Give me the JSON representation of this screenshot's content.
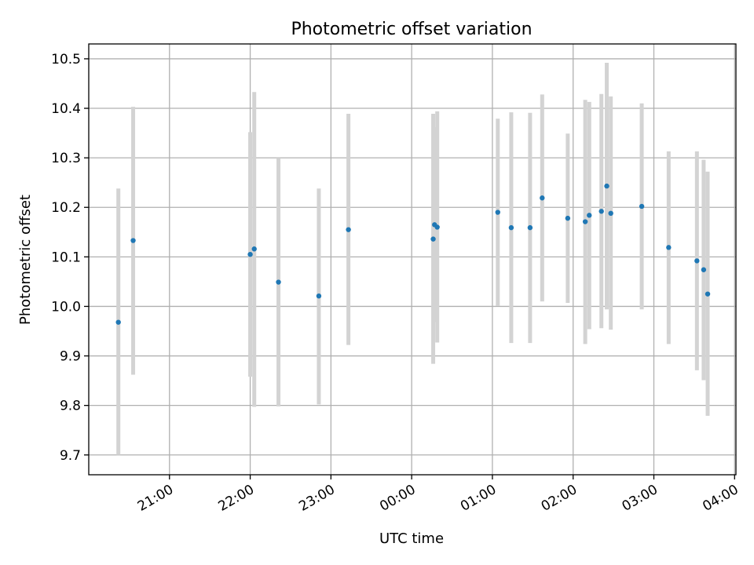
{
  "chart_data": {
    "type": "scatter",
    "title": "Photometric offset variation",
    "xlabel": "UTC time",
    "ylabel": "Photometric offset",
    "xlim": [
      "2000-01-01T20:00:00",
      "2000-01-02T04:01:00"
    ],
    "ylim": [
      9.66,
      10.53
    ],
    "x_ticks": [
      {
        "t": "2000-01-01T21:00:00",
        "label": "21:00"
      },
      {
        "t": "2000-01-01T22:00:00",
        "label": "22:00"
      },
      {
        "t": "2000-01-01T23:00:00",
        "label": "23:00"
      },
      {
        "t": "2000-01-02T00:00:00",
        "label": "00:00"
      },
      {
        "t": "2000-01-02T01:00:00",
        "label": "01:00"
      },
      {
        "t": "2000-01-02T02:00:00",
        "label": "02:00"
      },
      {
        "t": "2000-01-02T03:00:00",
        "label": "03:00"
      },
      {
        "t": "2000-01-02T04:00:00",
        "label": "04:00"
      }
    ],
    "y_ticks": [
      {
        "v": 9.7,
        "label": "9.7"
      },
      {
        "v": 9.8,
        "label": "9.8"
      },
      {
        "v": 9.9,
        "label": "9.9"
      },
      {
        "v": 10.0,
        "label": "10.0"
      },
      {
        "v": 10.1,
        "label": "10.1"
      },
      {
        "v": 10.2,
        "label": "10.2"
      },
      {
        "v": 10.3,
        "label": "10.3"
      },
      {
        "v": 10.4,
        "label": "10.4"
      },
      {
        "v": 10.5,
        "label": "10.5"
      }
    ],
    "grid": true,
    "colors": {
      "point": "#1f77b4",
      "errorbar": "#d3d3d3",
      "grid": "#b0b0b0"
    },
    "points": [
      {
        "t": "2000-01-01T20:22:00",
        "y": 9.968,
        "ylow": 9.7,
        "yhigh": 10.238
      },
      {
        "t": "2000-01-01T20:33:00",
        "y": 10.133,
        "ylow": 9.862,
        "yhigh": 10.403
      },
      {
        "t": "2000-01-01T22:00:00",
        "y": 10.105,
        "ylow": 9.858,
        "yhigh": 10.352
      },
      {
        "t": "2000-01-01T22:03:00",
        "y": 10.116,
        "ylow": 9.797,
        "yhigh": 10.433
      },
      {
        "t": "2000-01-01T22:21:00",
        "y": 10.049,
        "ylow": 9.798,
        "yhigh": 10.3
      },
      {
        "t": "2000-01-01T22:51:00",
        "y": 10.021,
        "ylow": 9.802,
        "yhigh": 10.238
      },
      {
        "t": "2000-01-01T23:13:00",
        "y": 10.155,
        "ylow": 9.922,
        "yhigh": 10.389
      },
      {
        "t": "2000-01-02T00:16:00",
        "y": 10.136,
        "ylow": 9.884,
        "yhigh": 10.389
      },
      {
        "t": "2000-01-02T00:17:00",
        "y": 10.165,
        "ylow": 9.968,
        "yhigh": 10.362
      },
      {
        "t": "2000-01-02T00:19:00",
        "y": 10.16,
        "ylow": 9.927,
        "yhigh": 10.394
      },
      {
        "t": "2000-01-02T01:04:00",
        "y": 10.19,
        "ylow": 10.001,
        "yhigh": 10.379
      },
      {
        "t": "2000-01-02T01:14:00",
        "y": 10.159,
        "ylow": 9.926,
        "yhigh": 10.392
      },
      {
        "t": "2000-01-02T01:28:00",
        "y": 10.159,
        "ylow": 9.926,
        "yhigh": 10.391
      },
      {
        "t": "2000-01-02T01:37:00",
        "y": 10.219,
        "ylow": 10.01,
        "yhigh": 10.428
      },
      {
        "t": "2000-01-02T01:56:00",
        "y": 10.178,
        "ylow": 10.007,
        "yhigh": 10.349
      },
      {
        "t": "2000-01-02T02:09:00",
        "y": 10.171,
        "ylow": 9.924,
        "yhigh": 10.417
      },
      {
        "t": "2000-01-02T02:12:00",
        "y": 10.184,
        "ylow": 9.954,
        "yhigh": 10.413
      },
      {
        "t": "2000-01-02T02:21:00",
        "y": 10.192,
        "ylow": 9.956,
        "yhigh": 10.429
      },
      {
        "t": "2000-01-02T02:25:00",
        "y": 10.243,
        "ylow": 9.994,
        "yhigh": 10.492
      },
      {
        "t": "2000-01-02T02:28:00",
        "y": 10.188,
        "ylow": 9.953,
        "yhigh": 10.424
      },
      {
        "t": "2000-01-02T02:51:00",
        "y": 10.202,
        "ylow": 9.994,
        "yhigh": 10.41
      },
      {
        "t": "2000-01-02T03:11:00",
        "y": 10.119,
        "ylow": 9.924,
        "yhigh": 10.313
      },
      {
        "t": "2000-01-02T03:32:00",
        "y": 10.092,
        "ylow": 9.871,
        "yhigh": 10.313
      },
      {
        "t": "2000-01-02T03:37:00",
        "y": 10.074,
        "ylow": 9.851,
        "yhigh": 10.296
      },
      {
        "t": "2000-01-02T03:40:00",
        "y": 10.025,
        "ylow": 9.779,
        "yhigh": 10.272
      }
    ]
  }
}
